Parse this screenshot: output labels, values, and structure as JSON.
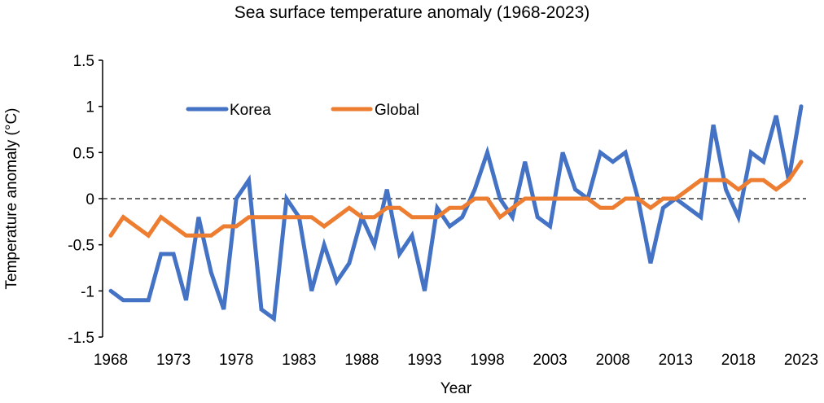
{
  "chart_data": {
    "type": "line",
    "title": "Sea surface temperature anomaly (1968-2023)",
    "xlabel": "Year",
    "ylabel": "Temperature anomaly (°C)",
    "ylim": [
      -1.5,
      1.5
    ],
    "xlim": [
      1968,
      2023
    ],
    "yticks": [
      1.5,
      1,
      0.5,
      0,
      -0.5,
      -1,
      -1.5
    ],
    "ytick_labels": [
      "1.5",
      "1",
      "0.5",
      "0",
      "-0.5",
      "-1",
      "-1.5"
    ],
    "xticks": [
      1968,
      1973,
      1978,
      1983,
      1988,
      1993,
      1998,
      2003,
      2008,
      2013,
      2018,
      2023
    ],
    "xtick_labels": [
      "1968",
      "1973",
      "1978",
      "1983",
      "1988",
      "1993",
      "1998",
      "2003",
      "2008",
      "2013",
      "2018",
      "2023"
    ],
    "reference_line": {
      "y": 0,
      "style": "dashed"
    },
    "grid": false,
    "legend_position": "top-left-inside",
    "x": [
      1968,
      1969,
      1970,
      1971,
      1972,
      1973,
      1974,
      1975,
      1976,
      1977,
      1978,
      1979,
      1980,
      1981,
      1982,
      1983,
      1984,
      1985,
      1986,
      1987,
      1988,
      1989,
      1990,
      1991,
      1992,
      1993,
      1994,
      1995,
      1996,
      1997,
      1998,
      1999,
      2000,
      2001,
      2002,
      2003,
      2004,
      2005,
      2006,
      2007,
      2008,
      2009,
      2010,
      2011,
      2012,
      2013,
      2014,
      2015,
      2016,
      2017,
      2018,
      2019,
      2020,
      2021,
      2022,
      2023
    ],
    "series": [
      {
        "name": "Korea",
        "color": "#4472C4",
        "values": [
          -1.0,
          -1.1,
          -1.1,
          -1.1,
          -0.6,
          -0.6,
          -1.1,
          -0.2,
          -0.8,
          -1.2,
          0.0,
          0.2,
          -1.2,
          -1.3,
          0.0,
          -0.2,
          -1.0,
          -0.5,
          -0.9,
          -0.7,
          -0.2,
          -0.5,
          0.1,
          -0.6,
          -0.4,
          -1.0,
          -0.1,
          -0.3,
          -0.2,
          0.1,
          0.5,
          0.0,
          -0.2,
          0.4,
          -0.2,
          -0.3,
          0.5,
          0.1,
          0.0,
          0.5,
          0.4,
          0.5,
          0.0,
          -0.7,
          -0.1,
          0.0,
          -0.1,
          -0.2,
          0.8,
          0.1,
          -0.2,
          0.5,
          0.4,
          0.9,
          0.2,
          1.0
        ]
      },
      {
        "name": "Global",
        "color": "#ED7D31",
        "values": [
          -0.4,
          -0.2,
          -0.3,
          -0.4,
          -0.2,
          -0.3,
          -0.4,
          -0.4,
          -0.4,
          -0.3,
          -0.3,
          -0.2,
          -0.2,
          -0.2,
          -0.2,
          -0.2,
          -0.2,
          -0.3,
          -0.2,
          -0.1,
          -0.2,
          -0.2,
          -0.1,
          -0.1,
          -0.2,
          -0.2,
          -0.2,
          -0.1,
          -0.1,
          0.0,
          0.0,
          -0.2,
          -0.1,
          0.0,
          0.0,
          0.0,
          0.0,
          0.0,
          0.0,
          -0.1,
          -0.1,
          0.0,
          0.0,
          -0.1,
          0.0,
          0.0,
          0.1,
          0.2,
          0.2,
          0.2,
          0.1,
          0.2,
          0.2,
          0.1,
          0.2,
          0.4
        ]
      }
    ]
  }
}
